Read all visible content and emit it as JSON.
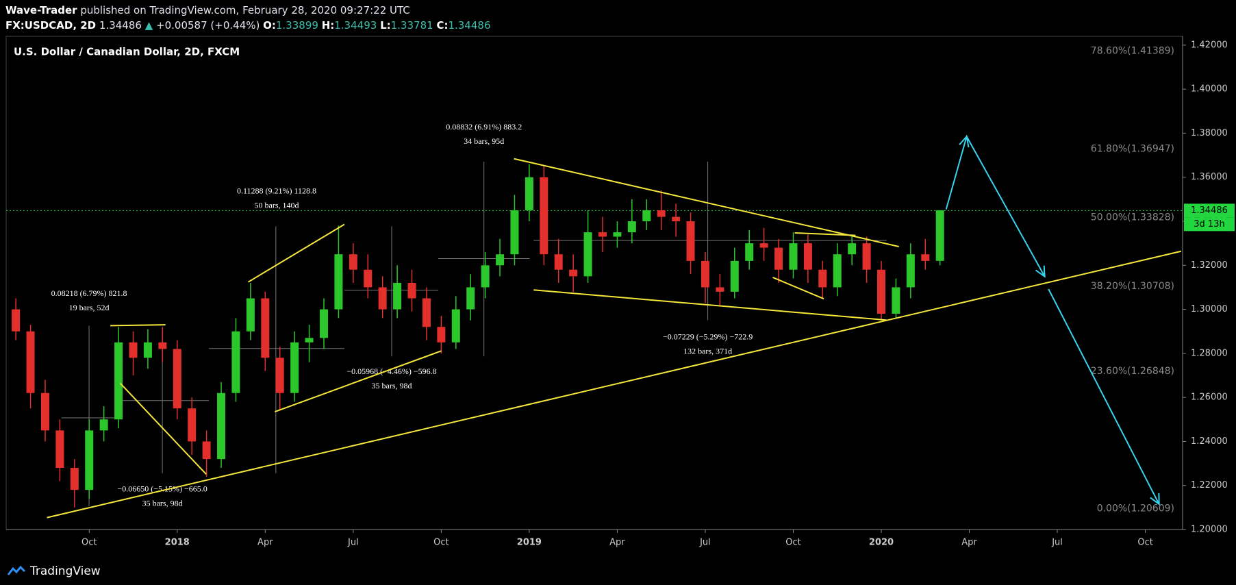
{
  "header": {
    "author": "Wave-Trader",
    "published": "published on TradingView.com, February 28, 2020 09:27:22 UTC",
    "symbol": "FX:USDCAD, 2D",
    "last": "1.34486",
    "change_arrow": "▲",
    "change": "+0.00587 (+0.44%)",
    "o_label": "O:",
    "open": "1.33899",
    "h_label": "H:",
    "high": "1.34493",
    "l_label": "L:",
    "low": "1.33781",
    "c_label": "C:",
    "close": "1.34486"
  },
  "chart_data": {
    "type": "candlestick",
    "title": "U.S. Dollar / Canadian Dollar, 2D, FXCM",
    "x": [
      -5.5,
      -5,
      -4.5,
      -4,
      -3.5,
      -3,
      -2.5,
      -2,
      -1.5,
      -1,
      -0.5,
      0,
      0.5,
      1,
      1.5,
      2,
      2.5,
      3,
      3.5,
      4,
      4.5,
      5,
      5.5,
      6,
      6.5,
      7,
      7.5,
      8,
      8.5,
      9,
      9.5,
      10,
      10.5,
      11,
      11.5,
      12,
      12.5,
      13,
      13.5,
      14,
      14.5,
      15,
      15.5,
      16,
      16.5,
      17,
      17.5,
      18,
      18.5,
      19,
      19.5,
      20,
      20.5,
      21,
      21.5,
      22,
      22.5,
      23,
      23.5,
      24,
      24.5,
      25,
      25.5,
      26
    ],
    "open": [
      1.3,
      1.29,
      1.262,
      1.245,
      1.228,
      1.218,
      1.245,
      1.25,
      1.285,
      1.278,
      1.285,
      1.282,
      1.255,
      1.24,
      1.232,
      1.262,
      1.29,
      1.305,
      1.278,
      1.262,
      1.285,
      1.287,
      1.3,
      1.325,
      1.318,
      1.31,
      1.3,
      1.312,
      1.305,
      1.292,
      1.285,
      1.3,
      1.31,
      1.32,
      1.325,
      1.345,
      1.36,
      1.325,
      1.318,
      1.315,
      1.335,
      1.333,
      1.335,
      1.34,
      1.345,
      1.342,
      1.34,
      1.322,
      1.31,
      1.308,
      1.322,
      1.33,
      1.328,
      1.318,
      1.33,
      1.318,
      1.31,
      1.325,
      1.33,
      1.318,
      1.298,
      1.31,
      1.325,
      1.322
    ],
    "high": [
      1.305,
      1.293,
      1.268,
      1.25,
      1.232,
      1.25,
      1.256,
      1.292,
      1.29,
      1.291,
      1.292,
      1.286,
      1.26,
      1.245,
      1.267,
      1.296,
      1.312,
      1.308,
      1.283,
      1.29,
      1.293,
      1.305,
      1.338,
      1.33,
      1.325,
      1.315,
      1.32,
      1.318,
      1.31,
      1.297,
      1.306,
      1.316,
      1.326,
      1.332,
      1.352,
      1.366,
      1.365,
      1.332,
      1.325,
      1.345,
      1.342,
      1.34,
      1.35,
      1.35,
      1.354,
      1.348,
      1.344,
      1.326,
      1.316,
      1.328,
      1.336,
      1.337,
      1.332,
      1.335,
      1.334,
      1.322,
      1.33,
      1.334,
      1.333,
      1.322,
      1.314,
      1.33,
      1.332,
      1.345
    ],
    "low": [
      1.286,
      1.255,
      1.24,
      1.222,
      1.21,
      1.214,
      1.24,
      1.246,
      1.27,
      1.273,
      1.276,
      1.25,
      1.234,
      1.224,
      1.228,
      1.258,
      1.286,
      1.272,
      1.254,
      1.258,
      1.276,
      1.282,
      1.296,
      1.312,
      1.305,
      1.296,
      1.296,
      1.299,
      1.286,
      1.28,
      1.282,
      1.295,
      1.305,
      1.315,
      1.32,
      1.34,
      1.32,
      1.312,
      1.308,
      1.312,
      1.326,
      1.328,
      1.33,
      1.336,
      1.336,
      1.333,
      1.316,
      1.303,
      1.302,
      1.305,
      1.318,
      1.322,
      1.312,
      1.314,
      1.312,
      1.305,
      1.306,
      1.32,
      1.312,
      1.295,
      1.296,
      1.305,
      1.318,
      1.32
    ],
    "close": [
      1.29,
      1.262,
      1.245,
      1.228,
      1.218,
      1.245,
      1.25,
      1.285,
      1.278,
      1.285,
      1.282,
      1.255,
      1.24,
      1.232,
      1.262,
      1.29,
      1.305,
      1.278,
      1.262,
      1.285,
      1.287,
      1.3,
      1.325,
      1.318,
      1.31,
      1.3,
      1.312,
      1.305,
      1.292,
      1.285,
      1.3,
      1.31,
      1.32,
      1.325,
      1.345,
      1.36,
      1.325,
      1.318,
      1.315,
      1.335,
      1.333,
      1.335,
      1.34,
      1.345,
      1.342,
      1.34,
      1.322,
      1.31,
      1.308,
      1.322,
      1.33,
      1.328,
      1.318,
      1.33,
      1.318,
      1.31,
      1.325,
      1.33,
      1.318,
      1.298,
      1.31,
      1.325,
      1.322,
      1.345
    ],
    "up_color": "#2cc72b",
    "down_color": "#e3302c",
    "xlim": [
      -5.83,
      34.27
    ],
    "xticks": [
      {
        "value": -3,
        "label": "Oct"
      },
      {
        "value": 0,
        "label": "2018"
      },
      {
        "value": 3,
        "label": "Apr"
      },
      {
        "value": 6,
        "label": "Jul"
      },
      {
        "value": 9,
        "label": "Oct"
      },
      {
        "value": 12,
        "label": "2019"
      },
      {
        "value": 15,
        "label": "Apr"
      },
      {
        "value": 18,
        "label": "Jul"
      },
      {
        "value": 21,
        "label": "Oct"
      },
      {
        "value": 24,
        "label": "2020"
      },
      {
        "value": 27,
        "label": "Apr"
      },
      {
        "value": 30,
        "label": "Jul"
      },
      {
        "value": 33,
        "label": "Oct"
      }
    ],
    "ylim": [
      1.2,
      1.424
    ],
    "yticks": [
      {
        "value": 1.42,
        "label": "1.42000"
      },
      {
        "value": 1.4,
        "label": "1.40000"
      },
      {
        "value": 1.38,
        "label": "1.38000"
      },
      {
        "value": 1.36,
        "label": "1.36000"
      },
      {
        "value": 1.34,
        "label": "1.34000"
      },
      {
        "value": 1.32,
        "label": "1.32000"
      },
      {
        "value": 1.3,
        "label": "1.30000"
      },
      {
        "value": 1.28,
        "label": "1.28000"
      },
      {
        "value": 1.26,
        "label": "1.26000"
      },
      {
        "value": 1.24,
        "label": "1.24000"
      },
      {
        "value": 1.22,
        "label": "1.22000"
      },
      {
        "value": 1.2,
        "label": "1.20000"
      }
    ],
    "last_price": 1.34486,
    "last_price_color": "#22d63d",
    "countdown": "3d 13h",
    "fib_levels": [
      {
        "value": 1.41389,
        "label": "78.60%(1.41389)"
      },
      {
        "value": 1.36947,
        "label": "61.80%(1.36947)"
      },
      {
        "value": 1.33828,
        "label": "50.00%(1.33828)"
      },
      {
        "value": 1.30708,
        "label": "38.20%(1.30708)"
      },
      {
        "value": 1.26848,
        "label": "23.60%(1.26848)"
      },
      {
        "value": 1.20609,
        "label": "0.00%(1.20609)"
      }
    ],
    "trendline_color": "#f5e63a",
    "trendlines": [
      {
        "x": [
          -4.44,
          34.22
        ],
        "y": [
          1.2054,
          1.3264
        ]
      },
      {
        "x": [
          11.48,
          24.6
        ],
        "y": [
          1.3684,
          1.3285
        ]
      },
      {
        "x": [
          12.15,
          24.19
        ],
        "y": [
          1.3088,
          1.2951
        ]
      },
      {
        "x": [
          -2.28,
          -0.4
        ],
        "y": [
          1.2926,
          1.293
        ]
      },
      {
        "x": [
          -1.94,
          0.99
        ],
        "y": [
          1.2664,
          1.2251
        ]
      },
      {
        "x": [
          2.42,
          5.7
        ],
        "y": [
          1.3124,
          1.3386
        ]
      },
      {
        "x": [
          3.33,
          9.0
        ],
        "y": [
          1.2535,
          1.2811
        ]
      },
      {
        "x": [
          21.05,
          23.12
        ],
        "y": [
          1.3347,
          1.3336
        ]
      },
      {
        "x": [
          20.3,
          22.04
        ],
        "y": [
          1.3145,
          1.3048
        ]
      }
    ],
    "projection": {
      "color": "#37d4f0",
      "x": [
        26.21,
        26.91,
        29.57,
        null,
        29.7,
        33.47
      ],
      "y": [
        1.3454,
        1.3785,
        1.3149,
        null,
        1.3092,
        1.2115
      ]
    },
    "measurements": [
      {
        "change": "0.08218 (6.79%) 821.8",
        "span": "19 bars, 52d"
      },
      {
        "change": "−0.06650 (−5.15%) −665.0",
        "span": "35 bars, 98d"
      },
      {
        "change": "0.11288 (9.21%) 1128.8",
        "span": "50 bars, 140d"
      },
      {
        "change": "−0.05968 (−4.46%) −596.8",
        "span": "35 bars, 98d"
      },
      {
        "change": "0.08832 (6.91%) 883.2",
        "span": "34 bars, 95d"
      },
      {
        "change": "−0.07229 (−5.29%) −722.9",
        "span": "132 bars, 371d"
      }
    ]
  },
  "footer": {
    "brand": "TradingView"
  }
}
